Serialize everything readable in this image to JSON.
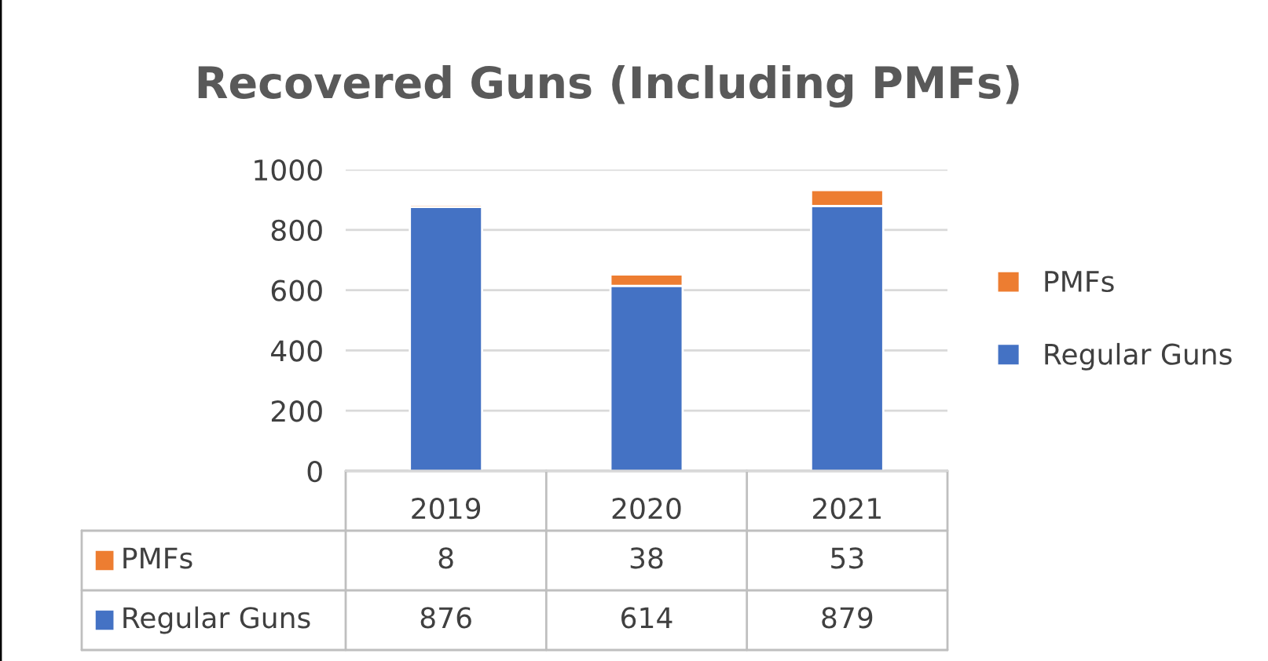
{
  "chart_data": {
    "type": "bar",
    "title": "Recovered Guns (Including PMFs)",
    "categories": [
      "2019",
      "2020",
      "2021"
    ],
    "series": [
      {
        "name": "Regular Guns",
        "color": "#4472c4",
        "values": [
          876,
          614,
          879
        ]
      },
      {
        "name": "PMFs",
        "color": "#ed7d31",
        "values": [
          8,
          38,
          53
        ]
      }
    ],
    "stacked": true,
    "ylim": [
      0,
      1000
    ],
    "yticks": [
      0,
      200,
      400,
      600,
      800,
      1000
    ],
    "grid": "y",
    "legend": "right",
    "data_labels": true
  }
}
